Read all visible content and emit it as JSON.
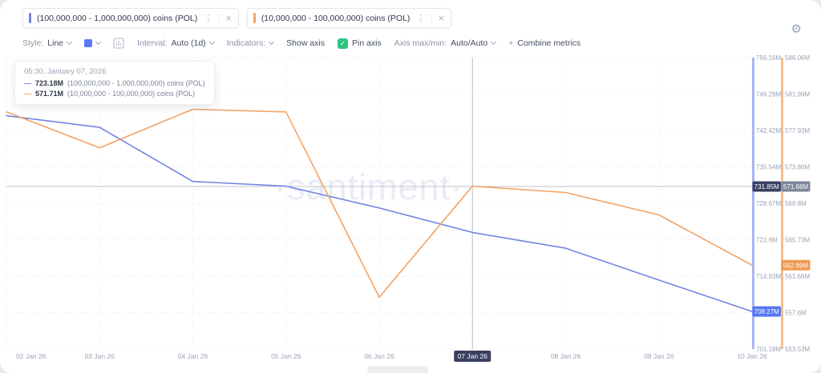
{
  "header": {
    "metric_tabs": [
      {
        "label": "(100,000,000 - 1,000,000,000) coins (POL)",
        "color": "#7286E2"
      },
      {
        "label": "(10,000,000 - 100,000,000) coins (POL)",
        "color": "#F2A265"
      }
    ],
    "menu_icon": "⋮",
    "close_icon": "×",
    "settings_icon": "⚙"
  },
  "toolbar": {
    "style": {
      "label": "Style:",
      "value": "Line"
    },
    "swatch_color": "#5B79F7",
    "interval": {
      "label": "Interval:",
      "value": "Auto (1d)"
    },
    "indicators_label": "Indicators:",
    "show_axis_label": "Show axis",
    "pin_axis_label": "Pin axis",
    "pin_check_glyph": "✓",
    "checkbox_color": "#2BC483",
    "axis_maxmin": {
      "label": "Axis max/min:",
      "value": "Auto/Auto"
    },
    "plus_icon": "+",
    "combine_metrics_label": "Combine metrics"
  },
  "tooltip": {
    "timestamp": "05:30, January 07, 2026",
    "rows": [
      {
        "dash": "—",
        "value": "723.18M",
        "label": "(100,000,000 - 1,000,000,000) coins (POL)",
        "color": "#7286E2"
      },
      {
        "dash": "—",
        "value": "571.71M",
        "label": "(10,000,000 - 100,000,000) coins (POL)",
        "color": "#F2A265"
      }
    ]
  },
  "watermark": "·santiment·",
  "chart_data": {
    "type": "line",
    "title": "",
    "x": [
      "02 Jan 26",
      "03 Jan 26",
      "04 Jan 26",
      "05 Jan 26",
      "06 Jan 26",
      "07 Jan 26",
      "08 Jan 26",
      "09 Jan 26",
      "10 Jan 26"
    ],
    "series": [
      {
        "name": "(100,000,000 - 1,000,000,000) coins (POL)",
        "color": "#7286E2",
        "axis": "left",
        "values": [
          745.2,
          743.0,
          732.8,
          731.9,
          727.8,
          723.18,
          720.2,
          714.2,
          708.27
        ],
        "last_badge": "708.27M",
        "last_badge_color": "#5577F2"
      },
      {
        "name": "(10,000,000 - 100,000,000) coins (POL)",
        "color": "#F2A265",
        "axis": "right",
        "values": [
          580.0,
          576.0,
          580.3,
          580.0,
          559.3,
          571.71,
          571.0,
          568.5,
          562.89
        ],
        "last_badge": "562.89M",
        "last_badge_color": "#EE9A4E"
      }
    ],
    "unit": "M (millions of POL)",
    "y_axis_left": {
      "max": 756.16,
      "min": 701.19,
      "ticks": [
        "756.16M",
        "749.29M",
        "742.42M",
        "735.54M",
        "728.67M",
        "721.8M",
        "714.93M",
        "",
        "701.19M"
      ],
      "strip_color": "#A9B5F0"
    },
    "y_axis_right": {
      "max": 586.06,
      "min": 553.53,
      "ticks": [
        "586.06M",
        "581.99M",
        "577.93M",
        "573.86M",
        "569.8M",
        "565.73M",
        "561.66M",
        "557.6M",
        "553.53M"
      ],
      "strip_color": "#F5BE8E"
    },
    "crosshair": {
      "x_index": 5,
      "x_label": "07 Jan 26",
      "left_value": 731.85,
      "left_label": "731.85M",
      "right_label": "571.68M",
      "badge_dark": "#3A4060",
      "badge_gray": "#7E8699"
    },
    "grid": true,
    "legend_position": "top-tabs"
  }
}
